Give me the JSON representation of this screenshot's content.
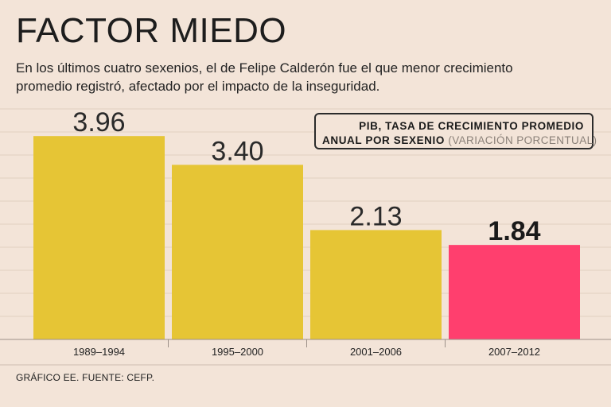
{
  "header": {
    "title": "FACTOR MIEDO",
    "subtitle": "En los últimos cuatro sexenios, el de Felipe Calderón fue el que menor crecimiento promedio registró, afectado por el impacto de la inseguridad."
  },
  "legend": {
    "line1": "PIB, TASA DE CRECIMIENTO PROMEDIO",
    "line2_bold": "ANUAL POR SEXENIO",
    "line2_light": "(VARIACIÓN PORCENTUAL)"
  },
  "footer": {
    "source": "GRÁFICO EE. FUENTE: CEFP."
  },
  "colors": {
    "background": "#f3e4d8",
    "bar_default": "#e6c535",
    "bar_highlight": "#ff3f6e",
    "gridline": "#e2cfc1"
  },
  "chart_data": {
    "type": "bar",
    "title": "PIB, tasa de crecimiento promedio anual por sexenio (variación porcentual)",
    "categories": [
      "1989–1994",
      "1995–2000",
      "2001–2006",
      "2007–2012"
    ],
    "values": [
      3.96,
      3.4,
      2.13,
      1.84
    ],
    "value_labels": [
      "3.96",
      "3.40",
      "2.13",
      "1.84"
    ],
    "highlight_index": 3,
    "ylim": [
      0,
      4.2
    ],
    "grid": true,
    "xlabel": "",
    "ylabel": ""
  }
}
